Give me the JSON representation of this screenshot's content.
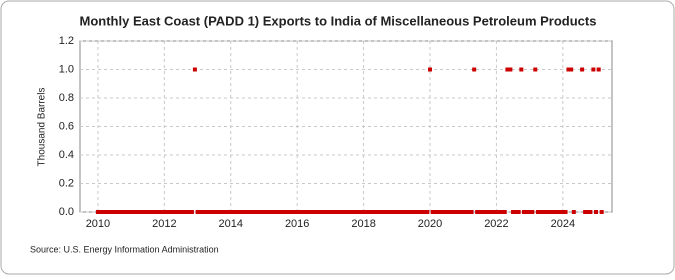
{
  "chart_data": {
    "type": "scatter",
    "title": "Monthly East Coast (PADD 1) Exports to India of Miscellaneous Petroleum Products",
    "y_label": "Thousand Barrels",
    "source": "Source: U.S. Energy Information Administration",
    "color": "#cc0000",
    "grid": true,
    "xlim": [
      2009.46,
      2025.48
    ],
    "ylim": [
      0,
      1.2
    ],
    "xticks": [
      2010,
      2012,
      2014,
      2016,
      2018,
      2020,
      2022,
      2024
    ],
    "yticks": [
      {
        "value": 0,
        "label": "0.0"
      },
      0.2,
      0.4,
      0.6,
      0.8,
      {
        "value": 1,
        "label": "1.0"
      },
      1.2
    ],
    "x": [
      2010,
      2010.08,
      2010.17,
      2010.25,
      2010.33,
      2010.42,
      2010.5,
      2010.58,
      2010.67,
      2010.75,
      2010.83,
      2010.92,
      2011,
      2011.08,
      2011.17,
      2011.25,
      2011.33,
      2011.42,
      2011.5,
      2011.58,
      2011.67,
      2011.75,
      2011.83,
      2011.92,
      2012,
      2012.08,
      2012.17,
      2012.25,
      2012.33,
      2012.42,
      2012.5,
      2012.58,
      2012.67,
      2012.75,
      2012.83,
      2012.92,
      2013,
      2013.08,
      2013.17,
      2013.25,
      2013.33,
      2013.42,
      2013.5,
      2013.58,
      2013.67,
      2013.75,
      2013.83,
      2013.92,
      2014,
      2014.08,
      2014.17,
      2014.25,
      2014.33,
      2014.42,
      2014.5,
      2014.58,
      2014.67,
      2014.75,
      2014.83,
      2014.92,
      2015,
      2015.08,
      2015.17,
      2015.25,
      2015.33,
      2015.42,
      2015.5,
      2015.58,
      2015.67,
      2015.75,
      2015.83,
      2015.92,
      2016,
      2016.08,
      2016.17,
      2016.25,
      2016.33,
      2016.42,
      2016.5,
      2016.58,
      2016.67,
      2016.75,
      2016.83,
      2016.92,
      2017,
      2017.08,
      2017.17,
      2017.25,
      2017.33,
      2017.42,
      2017.5,
      2017.58,
      2017.67,
      2017.75,
      2017.83,
      2017.92,
      2018,
      2018.08,
      2018.17,
      2018.25,
      2018.33,
      2018.42,
      2018.5,
      2018.58,
      2018.67,
      2018.75,
      2018.83,
      2018.92,
      2019,
      2019.08,
      2019.17,
      2019.25,
      2019.33,
      2019.42,
      2019.5,
      2019.58,
      2019.67,
      2019.75,
      2019.83,
      2019.92,
      2020,
      2020.08,
      2020.17,
      2020.25,
      2020.33,
      2020.42,
      2020.5,
      2020.58,
      2020.67,
      2020.75,
      2020.83,
      2020.92,
      2021,
      2021.08,
      2021.17,
      2021.25,
      2021.33,
      2021.42,
      2021.5,
      2021.58,
      2021.67,
      2021.75,
      2021.83,
      2021.92,
      2022,
      2022.08,
      2022.17,
      2022.25,
      2022.33,
      2022.42,
      2022.5,
      2022.58,
      2022.67,
      2022.75,
      2022.83,
      2022.92,
      2023,
      2023.08,
      2023.17,
      2023.25,
      2023.33,
      2023.42,
      2023.5,
      2023.58,
      2023.67,
      2023.75,
      2023.83,
      2023.92,
      2024,
      2024.08,
      2024.17,
      2024.25,
      2024.33,
      2024.58,
      2024.67,
      2024.75,
      2024.83,
      2024.92,
      2025,
      2025.08,
      2025.17
    ],
    "values": [
      0,
      0,
      0,
      0,
      0,
      0,
      0,
      0,
      0,
      0,
      0,
      0,
      0,
      0,
      0,
      0,
      0,
      0,
      0,
      0,
      0,
      0,
      0,
      0,
      0,
      0,
      0,
      0,
      0,
      0,
      0,
      0,
      0,
      0,
      0,
      1,
      0,
      0,
      0,
      0,
      0,
      0,
      0,
      0,
      0,
      0,
      0,
      0,
      0,
      0,
      0,
      0,
      0,
      0,
      0,
      0,
      0,
      0,
      0,
      0,
      0,
      0,
      0,
      0,
      0,
      0,
      0,
      0,
      0,
      0,
      0,
      0,
      0,
      0,
      0,
      0,
      0,
      0,
      0,
      0,
      0,
      0,
      0,
      0,
      0,
      0,
      0,
      0,
      0,
      0,
      0,
      0,
      0,
      0,
      0,
      0,
      0,
      0,
      0,
      0,
      0,
      0,
      0,
      0,
      0,
      0,
      0,
      0,
      0,
      0,
      0,
      0,
      0,
      0,
      0,
      0,
      0,
      0,
      0,
      0,
      1,
      0,
      0,
      0,
      0,
      0,
      0,
      0,
      0,
      0,
      0,
      0,
      0,
      0,
      0,
      0,
      1,
      0,
      0,
      0,
      0,
      0,
      0,
      0,
      0,
      0,
      0,
      0,
      1,
      1,
      0,
      0,
      0,
      1,
      0,
      0,
      0,
      0,
      1,
      0,
      0,
      0,
      0,
      0,
      0,
      0,
      0,
      0,
      0,
      0,
      1,
      1,
      0,
      1,
      0,
      0,
      0,
      1,
      0,
      1,
      0
    ]
  }
}
